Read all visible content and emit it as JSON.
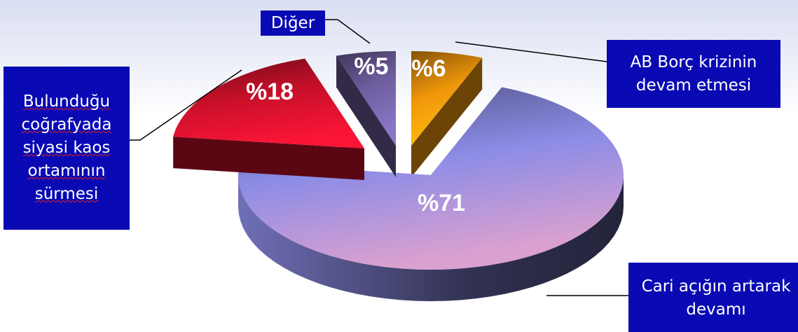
{
  "chart_data": {
    "type": "pie3d",
    "categories": [
      "AB Borç krizinin devam etmesi",
      "Cari açığın artarak devamı",
      "Bulunduğu coğrafyada siyasi kaos ortamının sürmesi",
      "Diğer"
    ],
    "values": [
      6,
      71,
      18,
      5
    ],
    "value_labels": [
      "%6",
      "%71",
      "%18",
      "%5"
    ],
    "colors": [
      "#f0960a",
      "#8c8ce6",
      "#c8102a",
      "#6e5e9e"
    ]
  }
}
